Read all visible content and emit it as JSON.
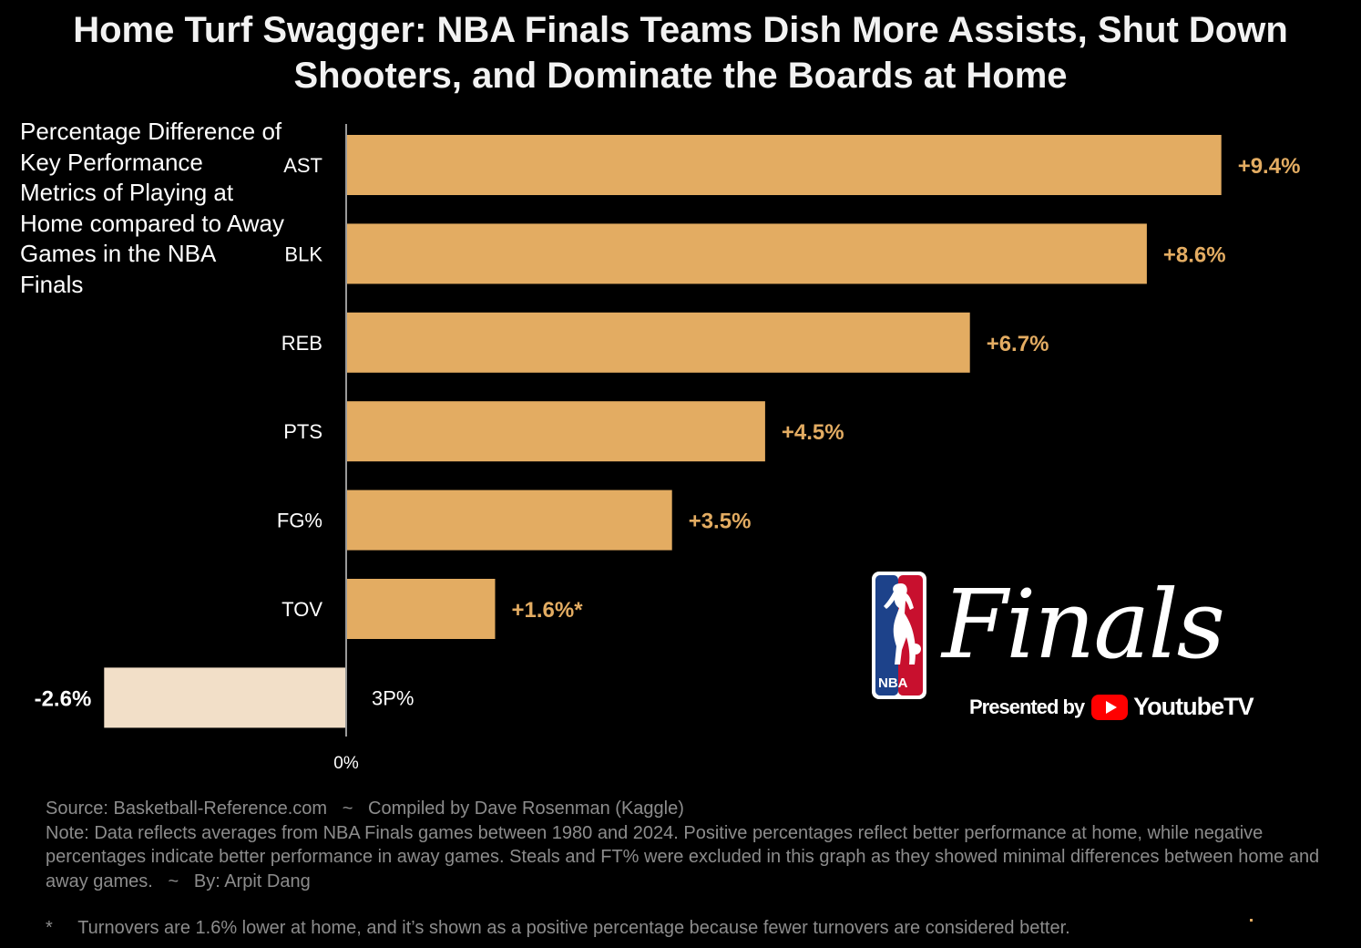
{
  "chart_data": {
    "type": "bar",
    "orientation": "horizontal",
    "title": "Home Turf Swagger: NBA Finals Teams Dish More Assists, Shut Down Shooters, and Dominate the Boards at Home",
    "subtitle": "Percentage Difference of Key Performance Metrics of Playing at Home compared to Away Games in the NBA Finals",
    "categories": [
      "AST",
      "BLK",
      "REB",
      "PTS",
      "FG%",
      "TOV",
      "3P%"
    ],
    "values": [
      9.4,
      8.6,
      6.7,
      4.5,
      3.5,
      1.6,
      -2.6
    ],
    "data_labels": [
      "+9.4%",
      "+8.6%",
      "+6.7%",
      "+4.5%",
      "+3.5%",
      "+1.6%*",
      "-2.6%"
    ],
    "zero_label": "0%",
    "xlabel": "",
    "ylabel": "",
    "xlim": [
      -2.6,
      9.4
    ],
    "grid": false,
    "colors": {
      "positive": "#e3ac62",
      "negative": "#f2dfc8",
      "axis": "#9a9a9a",
      "label": "#e3ac62"
    }
  },
  "logo": {
    "wordmark": "Finals",
    "shield_text": "NBA",
    "presented_by": "Presented by",
    "sponsor": "YoutubeTV"
  },
  "footer": {
    "source_line": "Source: Basketball-Reference.com   ~   Compiled by Dave Rosenman (Kaggle)",
    "note": "Note: Data reflects averages from NBA Finals games between 1980 and 2024. Positive percentages reflect better performance at home, while negative percentages indicate better performance in away games. Steals and FT% were excluded in this graph as they showed minimal differences between home and away games.   ~   By: Arpit Dang",
    "footnote": "*     Turnovers are 1.6% lower at home, and it’s shown as a positive percentage because fewer turnovers are considered better."
  }
}
